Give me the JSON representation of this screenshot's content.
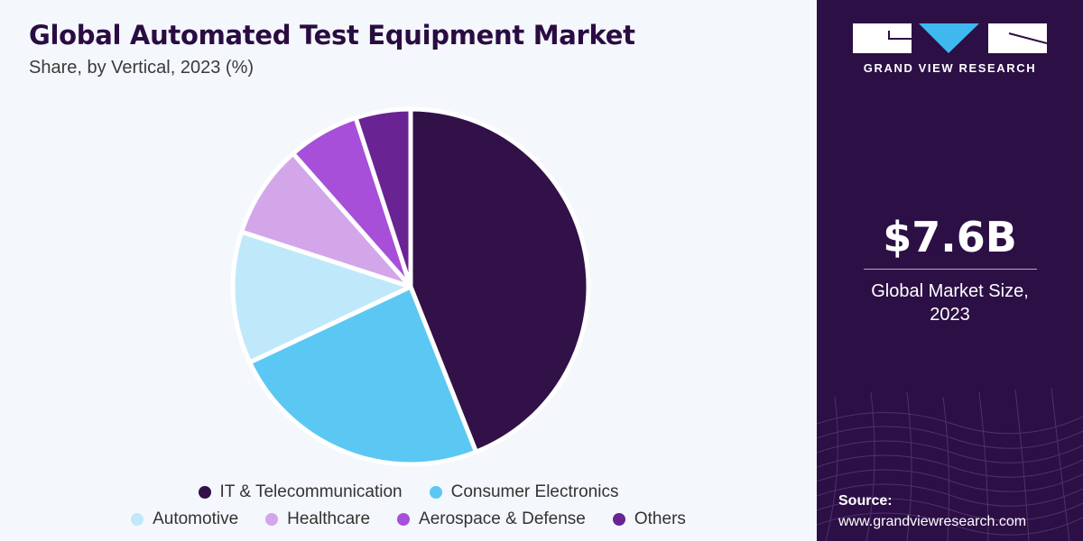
{
  "header": {
    "title": "Global Automated Test Equipment Market",
    "subtitle": "Share, by Vertical, 2023 (%)"
  },
  "chart_data": {
    "type": "pie",
    "slices": [
      {
        "label": "IT & Telecommunication",
        "value": 44,
        "color": "#321048"
      },
      {
        "label": "Consumer Electronics",
        "value": 24,
        "color": "#5bc8f4"
      },
      {
        "label": "Automotive",
        "value": 12,
        "color": "#bfe9fa"
      },
      {
        "label": "Healthcare",
        "value": 8.5,
        "color": "#d3a6e9"
      },
      {
        "label": "Aerospace & Defense",
        "value": 6.5,
        "color": "#a74fd9"
      },
      {
        "label": "Others",
        "value": 5,
        "color": "#6a2393"
      }
    ],
    "legend_position": "bottom",
    "legend_rows": [
      [
        "IT & Telecommunication",
        "Consumer Electronics"
      ],
      [
        "Automotive",
        "Healthcare",
        "Aerospace & Defense",
        "Others"
      ]
    ]
  },
  "brand": {
    "name": "GRAND VIEW RESEARCH",
    "logo_icon": "gvr-logo-icon"
  },
  "market": {
    "value": "$7.6B",
    "label_line1": "Global Market Size,",
    "label_line2": "2023"
  },
  "source": {
    "title": "Source:",
    "url": "www.grandviewresearch.com"
  },
  "colors": {
    "panel_background": "#2c0f45",
    "chart_background": "#f4f7fb",
    "title_color": "#2a0c42"
  }
}
